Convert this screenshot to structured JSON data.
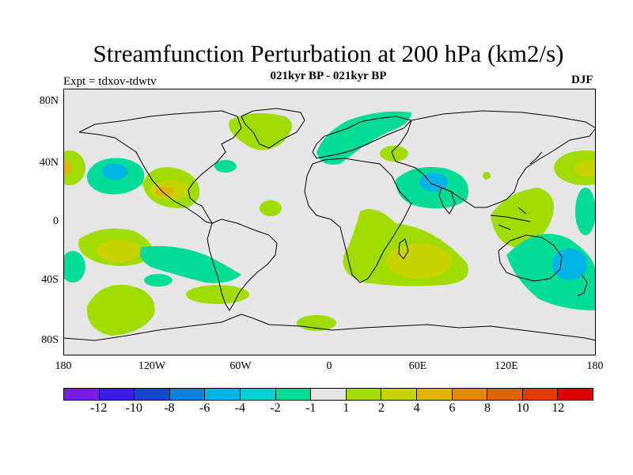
{
  "title": "Streamfunction Perturbation at 200 hPa (km2/s)",
  "subtitle": "021kyr BP - 021kyr BP",
  "expt_label": "Expt = tdxov-tdwtv",
  "season": "DJF",
  "y_ticks": [
    "80N",
    "40N",
    "0",
    "40S",
    "80S"
  ],
  "x_ticks": [
    "180",
    "120W",
    "60W",
    "0",
    "60E",
    "120E",
    "180"
  ],
  "colorbar": {
    "colors": [
      "#7a1ee6",
      "#3a1ee0",
      "#1446d2",
      "#0a82e0",
      "#00b4e6",
      "#00d2d2",
      "#00dc96",
      "#e6e6e6",
      "#a0dc00",
      "#c8d200",
      "#e1b400",
      "#e18c00",
      "#e16400",
      "#e13c00",
      "#e10000"
    ],
    "labels": [
      "-12",
      "-10",
      "-8",
      "-6",
      "-4",
      "-2",
      "-1",
      "1",
      "2",
      "4",
      "6",
      "8",
      "10",
      "12"
    ]
  },
  "map_colors": {
    "background": "#e6e6e6",
    "neg1": "#00dc96",
    "neg2": "#00d2d2",
    "neg3": "#00b4e6",
    "pos1": "#a0dc00",
    "pos2": "#c8d200",
    "pos3": "#e1b400"
  }
}
